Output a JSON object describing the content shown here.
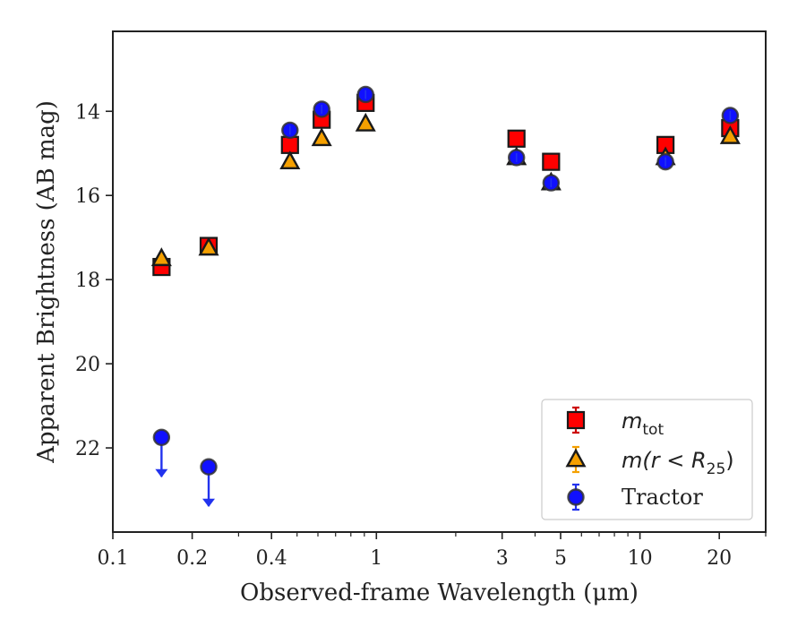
{
  "chart_data": {
    "type": "scatter",
    "xscale": "log",
    "xlim": [
      0.1,
      30
    ],
    "ylim": [
      24.0,
      12.1
    ],
    "y_inverted": true,
    "xlabel": "Observed-frame Wavelength (μm)",
    "ylabel": "Apparent Brightness (AB mag)",
    "xticks": [
      {
        "value": 0.1,
        "label": "0.1"
      },
      {
        "value": 0.2,
        "label": "0.2"
      },
      {
        "value": 0.4,
        "label": "0.4"
      },
      {
        "value": 1,
        "label": "1"
      },
      {
        "value": 3,
        "label": "3"
      },
      {
        "value": 5,
        "label": "5"
      },
      {
        "value": 10,
        "label": "10"
      },
      {
        "value": 20,
        "label": "20"
      }
    ],
    "xminor": [
      0.3,
      0.5,
      0.6,
      0.7,
      0.8,
      0.9,
      2,
      4,
      6,
      7,
      8,
      9,
      30
    ],
    "yticks": [
      {
        "value": 14,
        "label": "14"
      },
      {
        "value": 16,
        "label": "16"
      },
      {
        "value": 18,
        "label": "18"
      },
      {
        "value": 20,
        "label": "20"
      },
      {
        "value": 22,
        "label": "22"
      }
    ],
    "legend_position": "lower-right",
    "series": [
      {
        "key": "mtot",
        "name": "m_tot",
        "marker": "square",
        "color": "#ff0000",
        "edge": "#1a1a1a",
        "errcolor": "#cc0000",
        "x": [
          0.153,
          0.231,
          0.47,
          0.62,
          0.91,
          3.4,
          4.6,
          12.5,
          22.0
        ],
        "y": [
          17.7,
          17.2,
          14.8,
          14.2,
          13.8,
          14.65,
          15.2,
          14.8,
          14.4
        ]
      },
      {
        "key": "m25",
        "name": "m(r < R25)",
        "marker": "triangle",
        "color": "#f5a000",
        "edge": "#1a1a1a",
        "errcolor": "#f5a000",
        "x": [
          0.153,
          0.231,
          0.47,
          0.62,
          0.91,
          3.4,
          4.6,
          12.5,
          22.0
        ],
        "y": [
          17.5,
          17.25,
          15.2,
          14.65,
          14.3,
          15.1,
          15.7,
          15.1,
          14.6
        ]
      },
      {
        "key": "tractor",
        "name": "Tractor",
        "marker": "circle",
        "color": "#1010ff",
        "edge": "#333333",
        "errcolor": "#2233ee",
        "x": [
          0.153,
          0.231,
          0.47,
          0.62,
          0.91,
          3.4,
          4.6,
          12.5,
          22.0
        ],
        "y": [
          21.75,
          22.45,
          14.45,
          13.95,
          13.6,
          15.1,
          15.7,
          15.2,
          14.1
        ],
        "upper_limits": [
          true,
          true,
          false,
          false,
          false,
          false,
          false,
          false,
          false
        ]
      }
    ]
  },
  "legend": {
    "mtot_label_base": "m",
    "mtot_label_sub": "tot",
    "m25_label_base": "m(r < R",
    "m25_label_sub": "25",
    "m25_label_close": ")",
    "tractor_label": "Tractor"
  },
  "axes": {
    "xlabel": "Observed-frame Wavelength (μm)",
    "ylabel": "Apparent Brightness (AB mag)"
  }
}
